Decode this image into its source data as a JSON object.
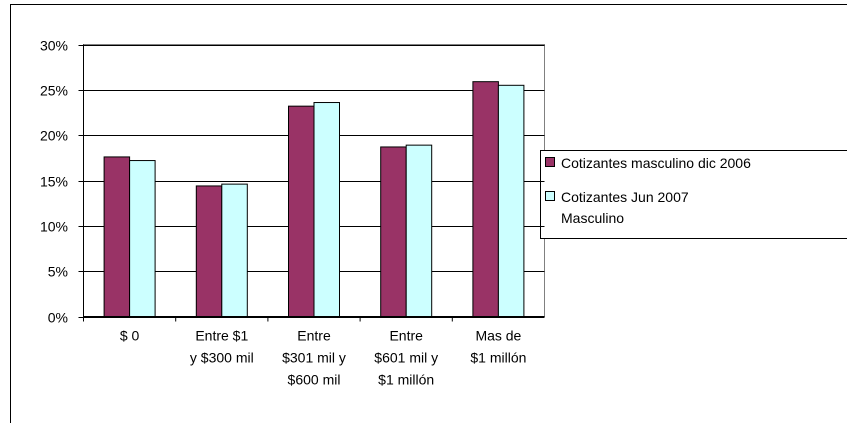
{
  "chart_data": {
    "type": "bar",
    "categories": [
      "$ 0",
      "Entre $1\ny $300 mil",
      "Entre\n$301 mil y\n$600 mil",
      "Entre\n$601 mil y\n$1 millón",
      "Mas de\n$1 millón"
    ],
    "series": [
      {
        "name": "Cotizantes masculino dic 2006",
        "color": "#993366",
        "values": [
          17.6,
          14.4,
          23.2,
          18.7,
          25.9
        ]
      },
      {
        "name": "Cotizantes Jun 2007\nMasculino",
        "color": "#ccffff",
        "values": [
          17.2,
          14.6,
          23.6,
          18.9,
          25.5
        ]
      }
    ],
    "ylim": [
      0,
      30
    ],
    "yticks": [
      {
        "value": 0,
        "label": "0%"
      },
      {
        "value": 5,
        "label": "5%"
      },
      {
        "value": 10,
        "label": "10%"
      },
      {
        "value": 15,
        "label": "15%"
      },
      {
        "value": 20,
        "label": "20%"
      },
      {
        "value": 25,
        "label": "25%"
      },
      {
        "value": 30,
        "label": "30%"
      }
    ],
    "grid": true,
    "legend": "right"
  }
}
